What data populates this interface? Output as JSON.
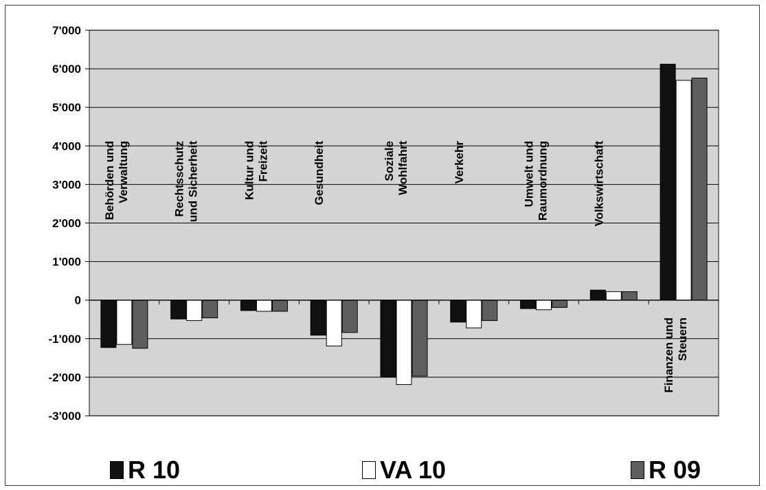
{
  "chart_data": {
    "type": "bar",
    "categories": [
      "Behörden und\nVerwaltung",
      "Rechtsschutz\nund Sicherheit",
      "Kultur und\nFreizeit",
      "Gesundheit",
      "Soziale\nWohlfahrt",
      "Verkehr",
      "Umwelt und\nRaumordnung",
      "Volkswirtschaft",
      "Finanzen und\nSteuern"
    ],
    "series": [
      {
        "name": "R 10",
        "color": "#111111",
        "values": [
          -1230,
          -490,
          -270,
          -910,
          -2000,
          -570,
          -220,
          260,
          6120
        ]
      },
      {
        "name": "VA 10",
        "color": "#ffffff",
        "values": [
          -1150,
          -530,
          -290,
          -1190,
          -2190,
          -720,
          -250,
          220,
          5700
        ]
      },
      {
        "name": "R 09",
        "color": "#5e5e5e",
        "values": [
          -1250,
          -460,
          -290,
          -840,
          -1970,
          -530,
          -190,
          220,
          5760
        ]
      }
    ],
    "yticks": [
      "7'000",
      "6'000",
      "5'000",
      "4'000",
      "3'000",
      "2'000",
      "1'000",
      "0",
      "-1'000",
      "-2'000",
      "-3'000"
    ],
    "ylim": [
      -3000,
      7000
    ],
    "grid": true,
    "legend_position": "bottom",
    "plot_background": "#d4d4d4"
  }
}
